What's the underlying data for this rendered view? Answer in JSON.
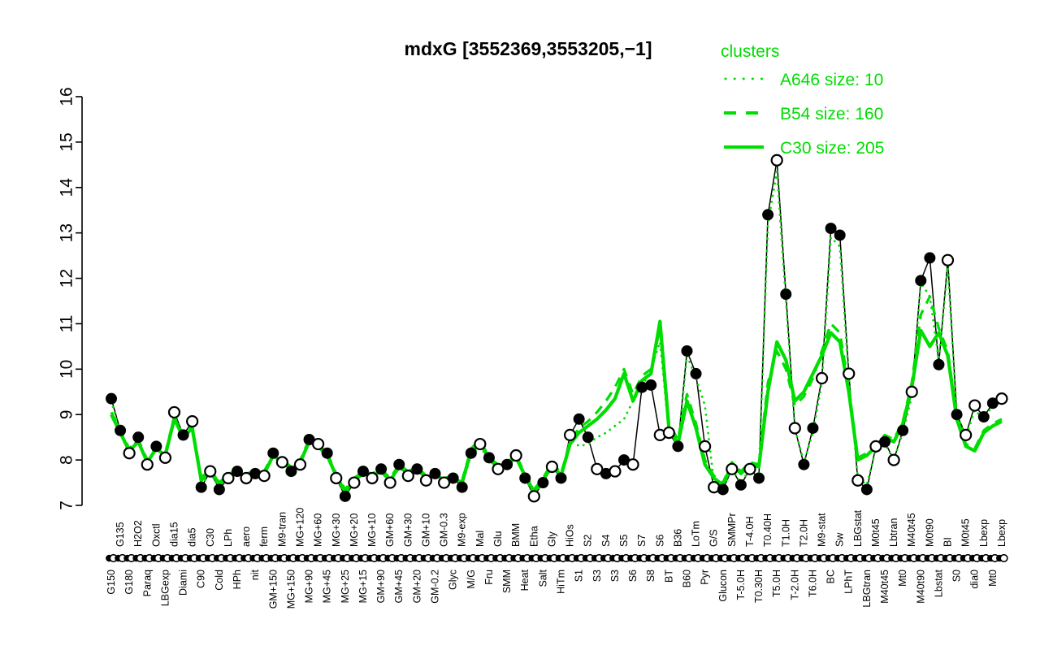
{
  "green": "#00dd00",
  "chart_data": {
    "type": "line",
    "title": "mdxG [3552369,3553205,−1]",
    "legend_title": "clusters",
    "legend_position": "top-right",
    "ylim": [
      7,
      16
    ],
    "yticks": [
      7,
      8,
      9,
      10,
      11,
      12,
      13,
      14,
      15,
      16
    ],
    "xlabel": "",
    "ylabel": "",
    "grid": false,
    "categories": [
      "G150",
      "G135",
      "G180",
      "H2O2",
      "Paraq",
      "Oxctl",
      "LBGexp",
      "dia15",
      "Diami",
      "dia5",
      "C90",
      "C30",
      "Cold",
      "LPh",
      "HPh",
      "aero",
      "nit",
      "ferm",
      "GM+150",
      "M9-tran",
      "MG+150",
      "MG+120",
      "MG+90",
      "MG+60",
      "MG+45",
      "MG+30",
      "MG+25",
      "MG+20",
      "MG+15",
      "MG+10",
      "GM+90",
      "GM+60",
      "GM+45",
      "GM+30",
      "GM+20",
      "GM+10",
      "GM-0.2",
      "GM-0.3",
      "Glyc",
      "M9-exp",
      "M/G",
      "Mal",
      "Fru",
      "Glu",
      "SMM",
      "BMM",
      "Heat",
      "Etha",
      "Salt",
      "Gly",
      "HiTm",
      "HiOs",
      "S1",
      "S2",
      "S3",
      "S4",
      "S3",
      "S5",
      "S6",
      "S7",
      "S8",
      "S6",
      "BT",
      "B36",
      "B60",
      "LoTm",
      "Pyr",
      "G/S",
      "Glucon",
      "SMMPr",
      "T-5.0H",
      "T-4.0H",
      "T0.30H",
      "T0.40H",
      "T5.0H",
      "T1.0H",
      "T-2.0H",
      "T2.0H",
      "T6.0H",
      "M9-stat",
      "BC",
      "Sw",
      "LPhT",
      "LBGstat",
      "LBGtran",
      "M0t45",
      "M40t45",
      "Lbtran",
      "Mt0",
      "M40t45",
      "M40t90",
      "M0t90",
      "Lbstat",
      "BI",
      "S0",
      "M0t45",
      "dia0",
      "Lbexp",
      "Mt0",
      "Lbexp"
    ],
    "marker_pattern": "ffofofoofofofofofofofofofofofofofofofofffofofofofofoffofofoffoofffoofofoffofoffoffoofofofofffofooffo",
    "series": [
      {
        "name": "gene",
        "style": "solid-black-markers",
        "color": "#000000",
        "values": [
          9.35,
          8.65,
          8.15,
          8.5,
          7.9,
          8.3,
          8.05,
          9.05,
          8.55,
          8.85,
          7.4,
          7.75,
          7.35,
          7.6,
          7.75,
          7.6,
          7.7,
          7.65,
          8.15,
          7.95,
          7.75,
          7.9,
          8.45,
          8.35,
          8.15,
          7.6,
          7.2,
          7.5,
          7.75,
          7.6,
          7.8,
          7.5,
          7.9,
          7.65,
          7.8,
          7.55,
          7.7,
          7.5,
          7.6,
          7.4,
          8.15,
          8.35,
          8.05,
          7.8,
          7.9,
          8.1,
          7.6,
          7.2,
          7.5,
          7.85,
          7.6,
          8.55,
          8.9,
          8.5,
          7.8,
          7.7,
          7.75,
          8.0,
          7.9,
          9.6,
          9.65,
          8.55,
          8.6,
          8.3,
          10.4,
          9.9,
          8.3,
          7.4,
          7.35,
          7.8,
          7.45,
          7.8,
          7.6,
          13.4,
          14.6,
          11.65,
          8.7,
          7.9,
          8.7,
          9.8,
          13.1,
          12.95,
          9.9,
          7.55,
          7.35,
          8.3,
          8.4,
          8.0,
          8.65,
          9.5,
          11.95,
          12.45,
          10.1,
          12.4,
          9.0,
          8.55,
          9.2,
          8.95,
          9.25,
          9.35
        ]
      },
      {
        "name": "A646 size: 10",
        "style": "dotted-green",
        "color": "#00dd00",
        "values": [
          9.3,
          8.6,
          8.1,
          8.45,
          7.9,
          8.25,
          8.0,
          9.0,
          8.5,
          8.8,
          7.45,
          7.7,
          7.4,
          7.6,
          7.7,
          7.6,
          7.65,
          7.65,
          8.1,
          7.9,
          7.75,
          7.9,
          8.4,
          8.3,
          8.1,
          7.6,
          7.25,
          7.5,
          7.7,
          7.6,
          7.75,
          7.5,
          7.85,
          7.65,
          7.8,
          7.55,
          7.7,
          7.5,
          7.6,
          7.45,
          8.1,
          8.3,
          8.0,
          7.8,
          7.9,
          8.05,
          7.6,
          7.25,
          7.5,
          7.85,
          7.6,
          8.5,
          8.3,
          8.35,
          8.5,
          8.6,
          8.75,
          8.9,
          9.3,
          9.6,
          10.0,
          10.6,
          8.6,
          8.3,
          10.3,
          9.8,
          9.2,
          7.5,
          7.4,
          7.8,
          7.5,
          7.8,
          7.7,
          13.2,
          14.35,
          11.5,
          8.7,
          7.95,
          8.6,
          9.7,
          12.9,
          12.7,
          9.8,
          7.6,
          7.45,
          8.25,
          8.35,
          8.0,
          8.6,
          9.4,
          11.9,
          11.6,
          10.2,
          12.25,
          9.0,
          8.5,
          9.1,
          8.9,
          9.2,
          9.3
        ]
      },
      {
        "name": "B54 size: 160",
        "style": "dashed-green",
        "color": "#00dd00",
        "values": [
          9.05,
          8.65,
          8.25,
          8.45,
          8.0,
          8.3,
          8.15,
          8.95,
          8.55,
          8.75,
          7.6,
          7.85,
          7.5,
          7.7,
          7.75,
          7.7,
          7.75,
          7.75,
          8.15,
          8.0,
          7.85,
          8.0,
          8.45,
          8.35,
          8.15,
          7.7,
          7.35,
          7.6,
          7.75,
          7.7,
          7.8,
          7.6,
          7.9,
          7.75,
          7.85,
          7.65,
          7.75,
          7.6,
          7.65,
          7.55,
          8.25,
          8.45,
          8.05,
          7.9,
          7.95,
          8.1,
          7.7,
          7.35,
          7.6,
          7.95,
          7.7,
          8.4,
          8.7,
          8.85,
          9.05,
          9.3,
          9.6,
          10.0,
          9.45,
          9.85,
          10.0,
          10.9,
          8.8,
          8.45,
          9.45,
          8.8,
          8.0,
          7.65,
          7.5,
          7.95,
          7.75,
          7.95,
          7.9,
          9.7,
          10.4,
          10.0,
          9.2,
          9.4,
          9.8,
          10.4,
          11.0,
          10.8,
          9.6,
          8.05,
          8.15,
          8.35,
          8.55,
          8.45,
          8.85,
          9.7,
          11.2,
          11.6,
          10.9,
          10.4,
          8.95,
          8.35,
          8.25,
          8.65,
          8.8,
          8.9
        ]
      },
      {
        "name": "C30 size: 205",
        "style": "solid-green",
        "color": "#00dd00",
        "values": [
          9.0,
          8.6,
          8.2,
          8.4,
          7.95,
          8.25,
          8.1,
          8.9,
          8.5,
          8.7,
          7.55,
          7.8,
          7.45,
          7.65,
          7.7,
          7.65,
          7.7,
          7.7,
          8.1,
          7.95,
          7.8,
          7.95,
          8.4,
          8.3,
          8.1,
          7.65,
          7.3,
          7.55,
          7.7,
          7.65,
          7.75,
          7.55,
          7.85,
          7.7,
          7.8,
          7.6,
          7.7,
          7.55,
          7.6,
          7.5,
          8.2,
          8.4,
          8.0,
          7.85,
          7.9,
          8.05,
          7.65,
          7.3,
          7.55,
          7.9,
          7.65,
          8.35,
          8.6,
          8.75,
          8.9,
          9.1,
          9.35,
          9.9,
          9.3,
          9.75,
          9.9,
          11.05,
          8.7,
          8.35,
          9.3,
          8.7,
          7.9,
          7.6,
          7.45,
          7.9,
          7.7,
          7.9,
          7.85,
          9.5,
          10.6,
          10.2,
          9.3,
          9.5,
          9.9,
          10.3,
          10.8,
          10.6,
          9.5,
          8.0,
          8.1,
          8.3,
          8.5,
          8.4,
          8.8,
          9.6,
          10.85,
          10.5,
          10.8,
          10.3,
          8.9,
          8.3,
          8.2,
          8.6,
          8.75,
          8.85
        ]
      }
    ]
  },
  "legend": {
    "title": "clusters",
    "entries": [
      {
        "label": "A646 size: 10"
      },
      {
        "label": "B54 size: 160"
      },
      {
        "label": "C30 size: 205"
      }
    ]
  }
}
